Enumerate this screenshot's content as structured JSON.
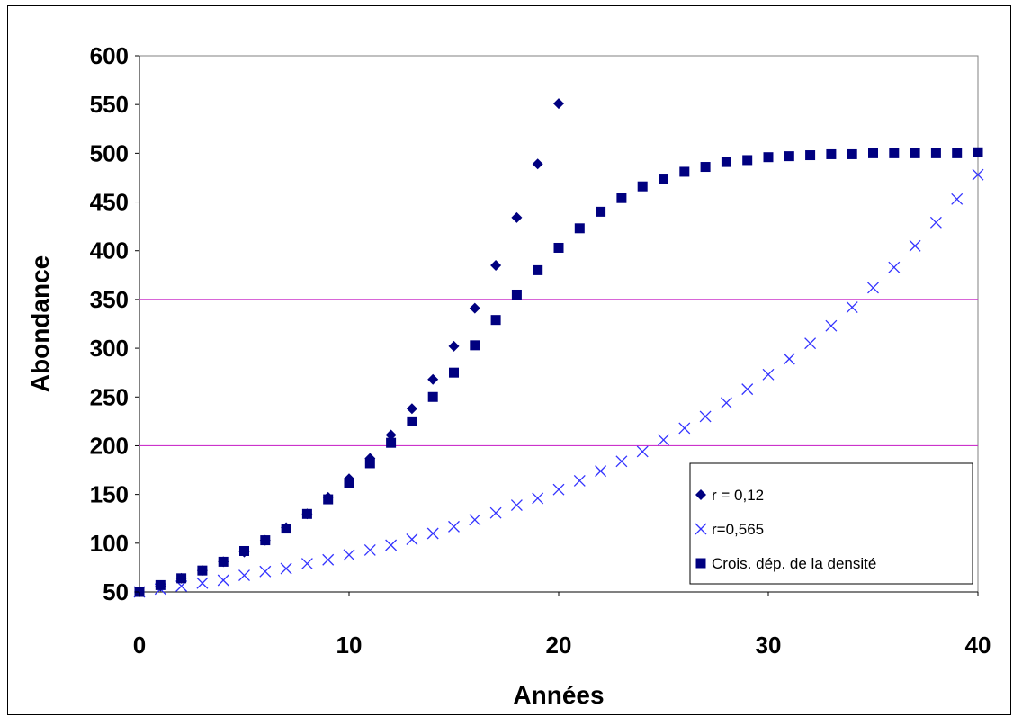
{
  "chart_data": {
    "type": "scatter",
    "title": "",
    "xlabel": "Années",
    "ylabel": "Abondance",
    "xlim": [
      0,
      40
    ],
    "ylim": [
      50,
      600
    ],
    "xticks": [
      0,
      10,
      20,
      30,
      40
    ],
    "yticks": [
      50,
      100,
      150,
      200,
      250,
      300,
      350,
      400,
      450,
      500,
      550,
      600
    ],
    "grid": false,
    "legend_position": "bottom-right",
    "reference_lines": [
      {
        "y": 200,
        "color": "#cc33cc"
      },
      {
        "y": 350,
        "color": "#cc33cc"
      }
    ],
    "series": [
      {
        "name": "r = 0,12",
        "marker": "diamond",
        "color": "#000080",
        "x": [
          0,
          1,
          2,
          3,
          4,
          5,
          6,
          7,
          8,
          9,
          10,
          11,
          12,
          13,
          14,
          15,
          16,
          17,
          18,
          19,
          20
        ],
        "y": [
          50,
          56,
          64,
          72,
          81,
          91,
          103,
          116,
          130,
          147,
          166,
          187,
          211,
          238,
          268,
          302,
          341,
          385,
          434,
          489,
          551
        ]
      },
      {
        "name": "r=0,565",
        "marker": "x",
        "color": "#3333ff",
        "x": [
          0,
          1,
          2,
          3,
          4,
          5,
          6,
          7,
          8,
          9,
          10,
          11,
          12,
          13,
          14,
          15,
          16,
          17,
          18,
          19,
          20,
          21,
          22,
          23,
          24,
          25,
          26,
          27,
          28,
          29,
          30,
          31,
          32,
          33,
          34,
          35,
          36,
          37,
          38,
          39,
          40
        ],
        "y": [
          50,
          53,
          56,
          59,
          62,
          67,
          71,
          74,
          79,
          83,
          88,
          93,
          98,
          104,
          110,
          117,
          124,
          131,
          139,
          146,
          155,
          164,
          174,
          184,
          194,
          206,
          218,
          230,
          244,
          258,
          273,
          289,
          305,
          323,
          342,
          362,
          383,
          405,
          429,
          453,
          478
        ]
      },
      {
        "name": "Crois. dép. de la densité",
        "marker": "square",
        "color": "#000080",
        "x": [
          0,
          1,
          2,
          3,
          4,
          5,
          6,
          7,
          8,
          9,
          10,
          11,
          12,
          13,
          14,
          15,
          16,
          17,
          18,
          19,
          20,
          21,
          22,
          23,
          24,
          25,
          26,
          27,
          28,
          29,
          30,
          31,
          32,
          33,
          34,
          35,
          36,
          37,
          38,
          39,
          40
        ],
        "y": [
          50,
          57,
          64,
          72,
          81,
          92,
          103,
          115,
          130,
          145,
          162,
          182,
          203,
          225,
          250,
          275,
          303,
          329,
          355,
          380,
          403,
          423,
          440,
          454,
          466,
          474,
          481,
          486,
          491,
          493,
          496,
          497,
          498,
          499,
          499,
          500,
          500,
          500,
          500,
          500,
          501
        ]
      }
    ]
  }
}
